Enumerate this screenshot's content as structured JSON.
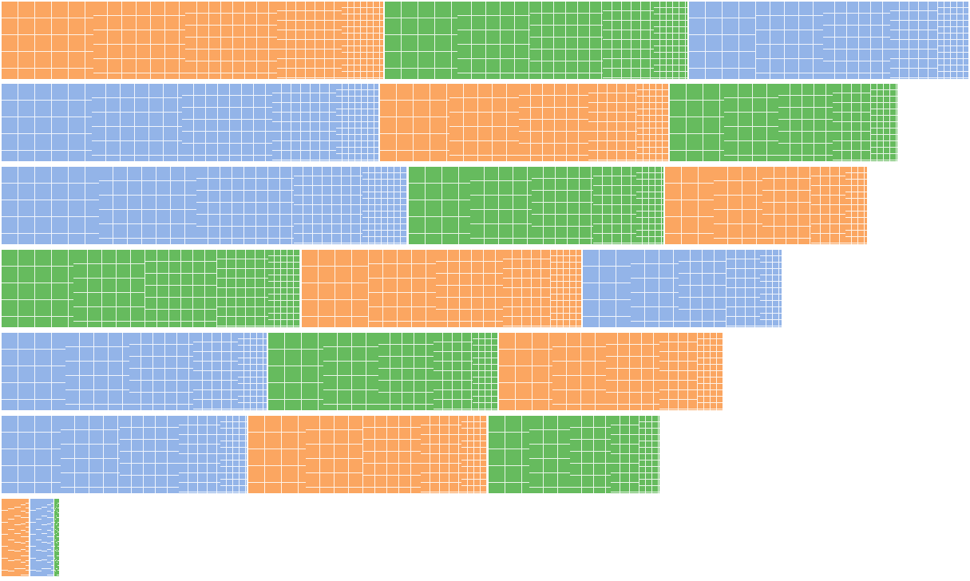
{
  "rows": [
    [
      "#fba661",
      "#66bb5e",
      "#93b4e8"
    ],
    [
      "#93b4e8",
      "#fba661",
      "#66bb5e"
    ],
    [
      "#93b4e8",
      "#66bb5e",
      "#fba661"
    ],
    [
      "#66bb5e",
      "#fba661",
      "#93b4e8"
    ],
    [
      "#93b4e8",
      "#66bb5e",
      "#fba661"
    ],
    [
      "#93b4e8",
      "#fba661",
      "#66bb5e"
    ],
    [
      "#fba661",
      "#93b4e8",
      "#66bb5e"
    ]
  ]
}
